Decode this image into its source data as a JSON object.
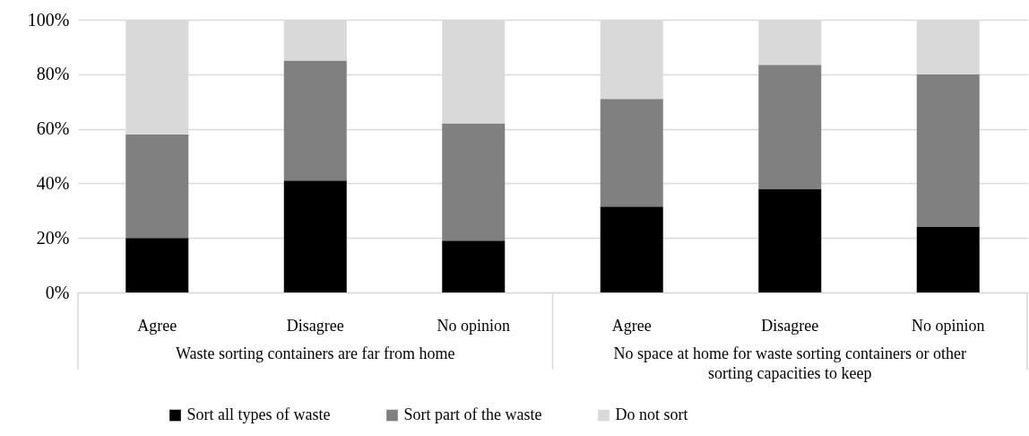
{
  "chart_data": {
    "type": "bar",
    "stacked": true,
    "categories": [
      "Agree",
      "Disagree",
      "No opinion",
      "Agree",
      "Disagree",
      "No opinion"
    ],
    "series": [
      {
        "name": "Sort all types of waste",
        "color": "#000000",
        "values": [
          20,
          41,
          19,
          31.5,
          38,
          24
        ]
      },
      {
        "name": "Sort part of the waste",
        "color": "#808080",
        "values": [
          38,
          44,
          43,
          39.5,
          45.5,
          56
        ]
      },
      {
        "name": "Do not sort",
        "color": "#d9d9d9",
        "values": [
          42,
          15,
          38,
          29,
          16.5,
          20
        ]
      }
    ],
    "annotations": [
      "Waste sorting containers are far from home",
      "No space at home for waste sorting containers or other sorting capacities to keep"
    ],
    "ylim": [
      0,
      100
    ],
    "yticks": [
      {
        "value": 0,
        "label": "0%"
      },
      {
        "value": 20,
        "label": "20%"
      },
      {
        "value": 40,
        "label": "40%"
      },
      {
        "value": 60,
        "label": "60%"
      },
      {
        "value": 80,
        "label": "80%"
      },
      {
        "value": 100,
        "label": "100%"
      }
    ],
    "grid": "y",
    "legend": "bottom"
  }
}
